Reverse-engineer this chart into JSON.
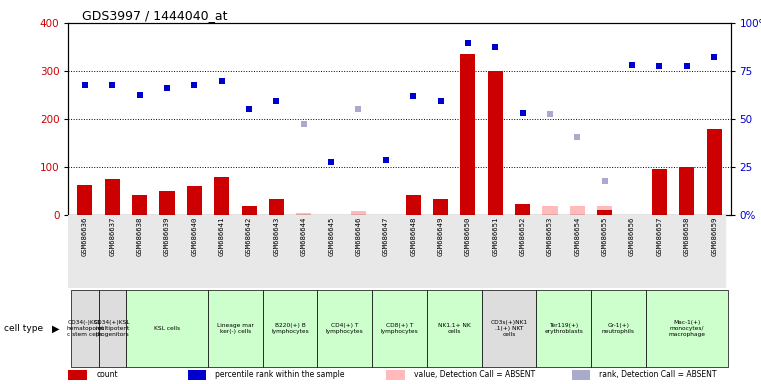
{
  "title": "GDS3997 / 1444040_at",
  "samples": [
    "GSM686636",
    "GSM686637",
    "GSM686638",
    "GSM686639",
    "GSM686640",
    "GSM686641",
    "GSM686642",
    "GSM686643",
    "GSM686644",
    "GSM686645",
    "GSM686646",
    "GSM686647",
    "GSM686648",
    "GSM686649",
    "GSM686650",
    "GSM686651",
    "GSM686652",
    "GSM686653",
    "GSM686654",
    "GSM686655",
    "GSM686656",
    "GSM686657",
    "GSM686658",
    "GSM686659"
  ],
  "count_values": [
    62,
    75,
    42,
    50,
    60,
    80,
    18,
    33,
    0,
    0,
    0,
    0,
    42,
    33,
    335,
    300,
    22,
    0,
    0,
    10,
    0,
    95,
    100,
    180
  ],
  "rank_values": [
    270,
    270,
    250,
    265,
    270,
    280,
    220,
    237,
    0,
    110,
    0,
    115,
    247,
    237,
    358,
    350,
    213,
    0,
    0,
    0,
    312,
    310,
    310,
    330
  ],
  "absent_count": [
    0,
    0,
    0,
    0,
    0,
    0,
    0,
    0,
    5,
    0,
    8,
    0,
    0,
    0,
    0,
    0,
    0,
    18,
    18,
    18,
    0,
    0,
    0,
    0
  ],
  "absent_rank": [
    0,
    0,
    0,
    0,
    0,
    0,
    0,
    0,
    190,
    110,
    220,
    115,
    0,
    0,
    0,
    0,
    0,
    210,
    163,
    70,
    0,
    0,
    0,
    0
  ],
  "cell_groups": [
    {
      "label": "CD34(-)KSL\nhematopoiet\nc stem cells",
      "indices": [
        0
      ],
      "color": "#dddddd"
    },
    {
      "label": "CD34(+)KSL\nmultipotent\nprogenitors",
      "indices": [
        1
      ],
      "color": "#dddddd"
    },
    {
      "label": "KSL cells",
      "indices": [
        2,
        3,
        4
      ],
      "color": "#ccffcc"
    },
    {
      "label": "Lineage mar\nker(-) cells",
      "indices": [
        5,
        6
      ],
      "color": "#ccffcc"
    },
    {
      "label": "B220(+) B\nlymphocytes",
      "indices": [
        7,
        8
      ],
      "color": "#ccffcc"
    },
    {
      "label": "CD4(+) T\nlymphocytes",
      "indices": [
        9,
        10
      ],
      "color": "#ccffcc"
    },
    {
      "label": "CD8(+) T\nlymphocytes",
      "indices": [
        11,
        12
      ],
      "color": "#ccffcc"
    },
    {
      "label": "NK1.1+ NK\ncells",
      "indices": [
        13,
        14
      ],
      "color": "#ccffcc"
    },
    {
      "label": "CD3s(+)NK1\n.1(+) NKT\ncells",
      "indices": [
        15,
        16
      ],
      "color": "#dddddd"
    },
    {
      "label": "Ter119(+)\nerythroblasts",
      "indices": [
        17,
        18
      ],
      "color": "#ccffcc"
    },
    {
      "label": "Gr-1(+)\nneutrophils",
      "indices": [
        19,
        20
      ],
      "color": "#ccffcc"
    },
    {
      "label": "Mac-1(+)\nmonocytes/\nmacrophage",
      "indices": [
        21,
        22,
        23
      ],
      "color": "#ccffcc"
    }
  ],
  "count_color": "#cc0000",
  "rank_color": "#0000cc",
  "absent_count_color": "#ffbbbb",
  "absent_rank_color": "#aaaacc",
  "legend": [
    {
      "label": "count",
      "color": "#cc0000"
    },
    {
      "label": "percentile rank within the sample",
      "color": "#0000cc"
    },
    {
      "label": "value, Detection Call = ABSENT",
      "color": "#ffbbbb"
    },
    {
      "label": "rank, Detection Call = ABSENT",
      "color": "#aaaacc"
    }
  ]
}
